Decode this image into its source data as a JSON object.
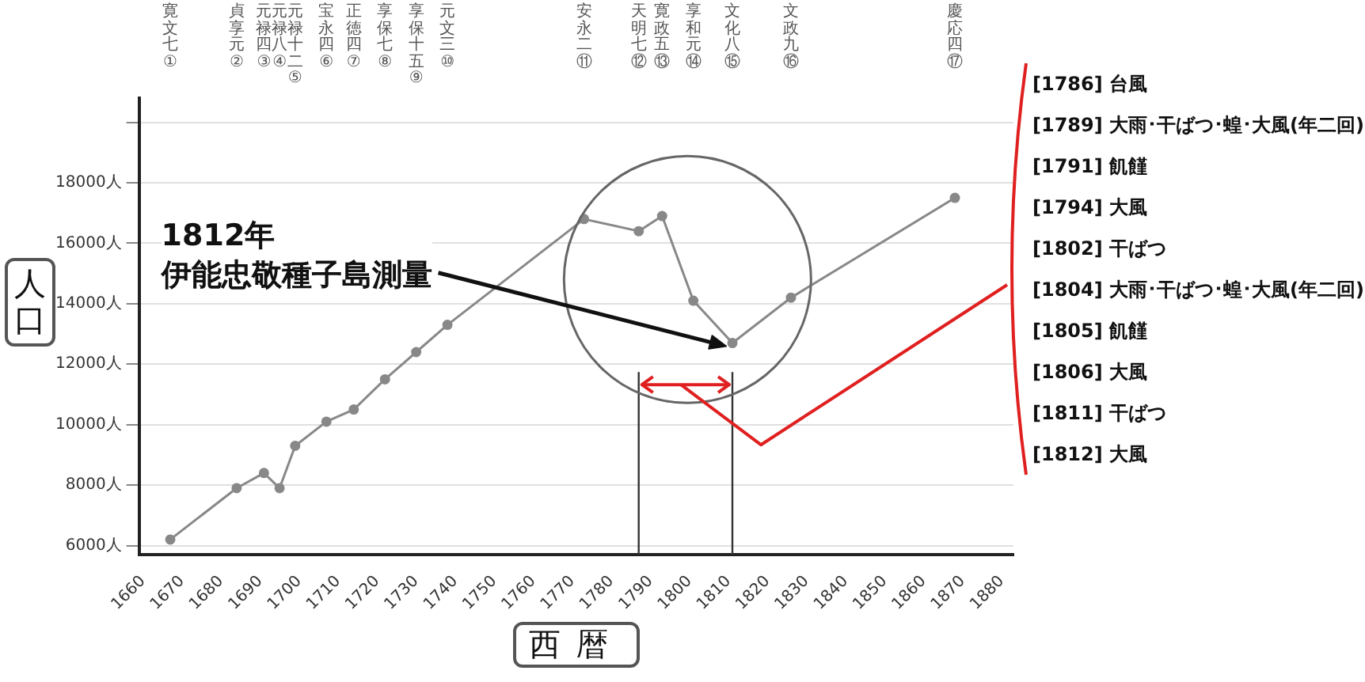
{
  "chart_data": {
    "type": "line",
    "xlabel": "西暦",
    "ylabel": "人口",
    "x": [
      1667,
      1684,
      1691,
      1695,
      1699,
      1707,
      1714,
      1722,
      1730,
      1738,
      1773,
      1787,
      1793,
      1801,
      1811,
      1826,
      1868
    ],
    "series": [
      {
        "color": "#888888",
        "values": [
          6200,
          7900,
          8400,
          7900,
          9300,
          10100,
          10500,
          11500,
          12400,
          13300,
          16800,
          16400,
          16900,
          14100,
          12700,
          14200,
          17500
        ]
      }
    ],
    "marker": "circle",
    "line_style": "solid",
    "legend": false,
    "grid": "y",
    "xlim": [
      1659,
      1883
    ],
    "xticks": [
      1660,
      1670,
      1680,
      1690,
      1700,
      1710,
      1720,
      1730,
      1740,
      1750,
      1760,
      1770,
      1780,
      1790,
      1800,
      1810,
      1820,
      1830,
      1840,
      1850,
      1860,
      1870,
      1880
    ],
    "ylim": [
      5700,
      20800
    ],
    "yticks": [
      {
        "value": 6000,
        "label": "6000人"
      },
      {
        "value": 8000,
        "label": "8000人"
      },
      {
        "value": 10000,
        "label": "10000人"
      },
      {
        "value": 12000,
        "label": "12000人"
      },
      {
        "value": 14000,
        "label": "14000人"
      },
      {
        "value": 16000,
        "label": "16000人"
      },
      {
        "value": 18000,
        "label": "18000人"
      },
      {
        "value": 20000,
        "label": null
      }
    ],
    "ref_lines": [
      {
        "axis": "x",
        "value": 1787,
        "color": "#333333"
      },
      {
        "axis": "x",
        "value": 1811,
        "color": "#333333"
      }
    ],
    "annotations": [
      "1812年",
      "伊能忠敬種子島測量",
      "[1786] 台風",
      "[1789] 大雨･干ばつ･蝗･大風(年二回)",
      "[1791] 飢饉",
      "[1794] 大風",
      "[1802] 干ばつ",
      "[1804] 大雨･干ばつ･蝗･大風(年二回)",
      "[1805] 飢饉",
      "[1806] 大風",
      "[1811] 干ばつ",
      "[1812] 大風",
      "寛文七①",
      "貞享元②",
      "元禄四③",
      "元禄八④",
      "元禄十二⑤",
      "宝永四⑥",
      "正徳四⑦",
      "享保七⑧",
      "享保十五⑨",
      "元文三⑩",
      "安永二⑪",
      "天明七⑫",
      "寛政五⑬",
      "享和元⑭",
      "文化八⑮",
      "文政九⑯",
      "慶応四⑰"
    ]
  }
}
